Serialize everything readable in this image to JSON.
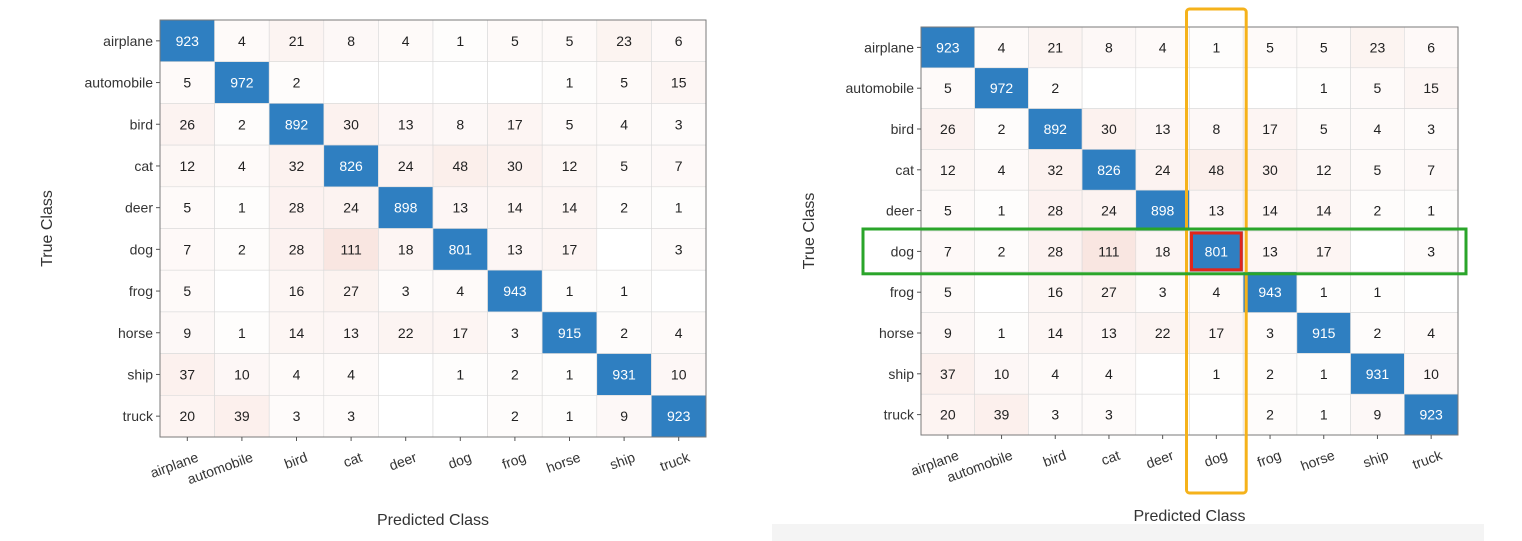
{
  "chart_data": [
    {
      "type": "heatmap",
      "xlabel": "Predicted Class",
      "ylabel": "True Class",
      "row_labels": [
        "airplane",
        "automobile",
        "bird",
        "cat",
        "deer",
        "dog",
        "frog",
        "horse",
        "ship",
        "truck"
      ],
      "col_labels": [
        "airplane",
        "automobile",
        "bird",
        "cat",
        "deer",
        "dog",
        "frog",
        "horse",
        "ship",
        "truck"
      ],
      "values": [
        [
          923,
          4,
          21,
          8,
          4,
          1,
          5,
          5,
          23,
          6
        ],
        [
          5,
          972,
          2,
          null,
          null,
          null,
          null,
          1,
          5,
          15
        ],
        [
          26,
          2,
          892,
          30,
          13,
          8,
          17,
          5,
          4,
          3
        ],
        [
          12,
          4,
          32,
          826,
          24,
          48,
          30,
          12,
          5,
          7
        ],
        [
          5,
          1,
          28,
          24,
          898,
          13,
          14,
          14,
          2,
          1
        ],
        [
          7,
          2,
          28,
          111,
          18,
          801,
          13,
          17,
          null,
          3
        ],
        [
          5,
          null,
          16,
          27,
          3,
          4,
          943,
          1,
          1,
          null
        ],
        [
          9,
          1,
          14,
          13,
          22,
          17,
          3,
          915,
          2,
          4
        ],
        [
          37,
          10,
          4,
          4,
          null,
          1,
          2,
          1,
          931,
          10
        ],
        [
          20,
          39,
          3,
          3,
          null,
          null,
          2,
          1,
          9,
          923
        ]
      ],
      "colors": {
        "diagonal": "#2f7fc1",
        "diagonal_text": "#ffffff",
        "offdiag_text": "#222222",
        "border": "#7a7a7a"
      }
    },
    {
      "type": "heatmap",
      "xlabel": "Predicted Class",
      "ylabel": "True Class",
      "row_labels": [
        "airplane",
        "automobile",
        "bird",
        "cat",
        "deer",
        "dog",
        "frog",
        "horse",
        "ship",
        "truck"
      ],
      "col_labels": [
        "airplane",
        "automobile",
        "bird",
        "cat",
        "deer",
        "dog",
        "frog",
        "horse",
        "ship",
        "truck"
      ],
      "values": [
        [
          923,
          4,
          21,
          8,
          4,
          1,
          5,
          5,
          23,
          6
        ],
        [
          5,
          972,
          2,
          null,
          null,
          null,
          null,
          1,
          5,
          15
        ],
        [
          26,
          2,
          892,
          30,
          13,
          8,
          17,
          5,
          4,
          3
        ],
        [
          12,
          4,
          32,
          826,
          24,
          48,
          30,
          12,
          5,
          7
        ],
        [
          5,
          1,
          28,
          24,
          898,
          13,
          14,
          14,
          2,
          1
        ],
        [
          7,
          2,
          28,
          111,
          18,
          801,
          13,
          17,
          null,
          3
        ],
        [
          5,
          null,
          16,
          27,
          3,
          4,
          943,
          1,
          1,
          null
        ],
        [
          9,
          1,
          14,
          13,
          22,
          17,
          3,
          915,
          2,
          4
        ],
        [
          37,
          10,
          4,
          4,
          null,
          1,
          2,
          1,
          931,
          10
        ],
        [
          20,
          39,
          3,
          3,
          null,
          null,
          2,
          1,
          9,
          923
        ]
      ],
      "highlights": {
        "row": "dog",
        "column": "dog",
        "row_color": "#2aa52a",
        "column_color": "#f5b21b",
        "cell_color": "#e0261c"
      },
      "colors": {
        "diagonal": "#2f7fc1",
        "diagonal_text": "#ffffff",
        "offdiag_text": "#222222",
        "border": "#7a7a7a"
      }
    }
  ]
}
